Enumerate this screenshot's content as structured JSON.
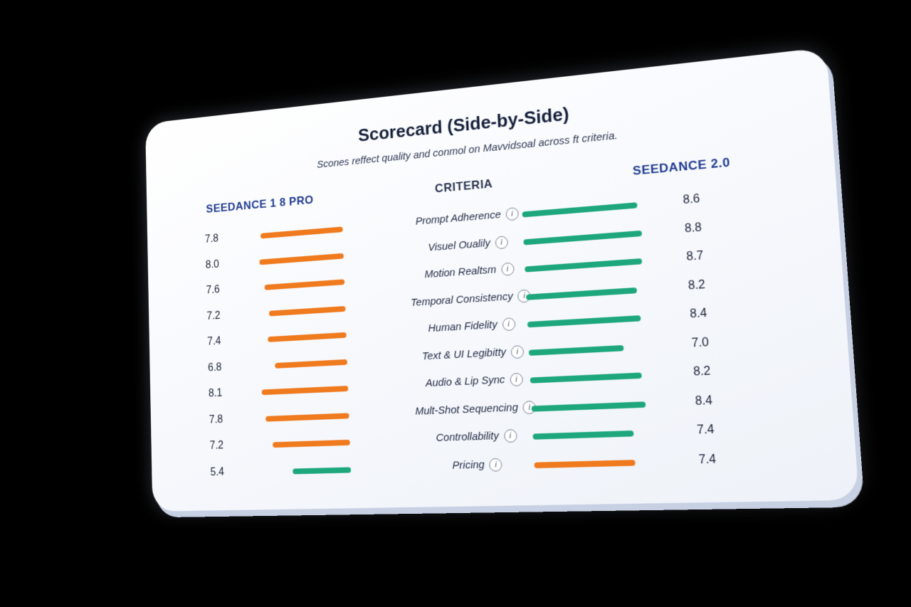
{
  "chart_data": {
    "type": "bar",
    "title": "Scorecard (Side-by-Side)",
    "subtitle": "Scones reffect quality and conmol on Mavvidsoal across ft criteria.",
    "criteria_header": "CRITERIA",
    "series": [
      {
        "name": "SEEDANCE 1 8 PRO",
        "values": [
          7.8,
          8.0,
          7.6,
          7.2,
          7.4,
          6.8,
          8.1,
          7.8,
          7.2,
          5.4
        ],
        "bar_colors": [
          "#f07a1e",
          "#f07a1e",
          "#f07a1e",
          "#f07a1e",
          "#f07a1e",
          "#f07a1e",
          "#f07a1e",
          "#f07a1e",
          "#f07a1e",
          "#1ea77c"
        ]
      },
      {
        "name": "SEEDANCE 2.0",
        "values": [
          8.6,
          8.8,
          8.7,
          8.2,
          8.4,
          7.0,
          8.2,
          8.4,
          7.4,
          7.4
        ],
        "bar_colors": [
          "#1ea77c",
          "#1ea77c",
          "#1ea77c",
          "#1ea77c",
          "#1ea77c",
          "#1ea77c",
          "#1ea77c",
          "#1ea77c",
          "#1ea77c",
          "#f07a1e"
        ]
      }
    ],
    "categories": [
      "Prompt Adherence",
      "Visuel Oualily",
      "Motion Realtsm",
      "Temporal Consistency",
      "Human Fidelity",
      "Text & UI Legibitty",
      "Audio & Lip Sync",
      "Mult-Shot Sequencing",
      "Controllability",
      "Pricing"
    ],
    "info_icon_glyph": "i",
    "ylim": [
      0,
      10
    ],
    "grid": false,
    "legend": "none",
    "colors": {
      "accent_orange": "#f07a1e",
      "accent_green": "#1ea77c",
      "header_blue": "#1f3a8f"
    }
  }
}
